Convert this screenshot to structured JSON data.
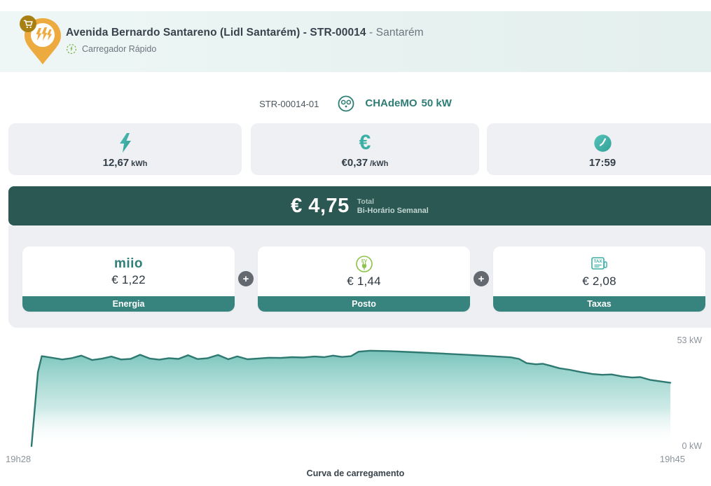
{
  "header": {
    "title_bold": "Avenida Bernardo Santareno (Lidl Santarém) - STR-00014",
    "title_light": " - Santarém",
    "subtitle": "Carregador Rápido"
  },
  "connector": {
    "code": "STR-00014-01",
    "type": "CHAdeMO",
    "power": "50 kW"
  },
  "stats": [
    {
      "icon": "lightning-icon",
      "value": "12,67",
      "unit": "kWh"
    },
    {
      "icon": "euro-icon",
      "value": "€0,37",
      "unit": "/kWh"
    },
    {
      "icon": "clock-icon",
      "value": "17:59",
      "unit": ""
    }
  ],
  "total": {
    "amount": "€ 4,75",
    "label_line1": "Total",
    "label_line2": "Bi-Horário Semanal"
  },
  "breakdown": [
    {
      "icon": "miio-logo",
      "logo_text": "miio",
      "price": "€ 1,22",
      "label": "Energia"
    },
    {
      "icon": "ev-charger-icon",
      "price": "€ 1,44",
      "label": "Posto"
    },
    {
      "icon": "tax-receipt-icon",
      "price": "€ 2,08",
      "label": "Taxas"
    }
  ],
  "plus_label": "+",
  "colors": {
    "accent_teal": "#3bafa6",
    "banner_teal": "#2b5852",
    "footer_teal": "#37847e",
    "chademo_teal": "#2e7d75",
    "pin_orange": "#ecaa3f",
    "badge_amber": "#a87f12",
    "green_icon": "#7ab648",
    "label_gray": "#8b949b"
  },
  "chart_data": {
    "type": "area",
    "title": "Curva de carregamento",
    "x_start_label": "19h28",
    "x_end_label": "19h45",
    "y_max_label": "53 kW",
    "y_min_label": "0 kW",
    "ylim": [
      0,
      53
    ],
    "unit": "kW",
    "grid": false,
    "legend": false,
    "line_color": "#2e7a72",
    "fill_top_color": "#57b5ab",
    "points": [
      [
        0.0,
        0
      ],
      [
        0.01,
        38
      ],
      [
        0.016,
        46.3
      ],
      [
        0.03,
        45.6
      ],
      [
        0.048,
        44.6
      ],
      [
        0.062,
        45.2
      ],
      [
        0.078,
        46.6
      ],
      [
        0.095,
        44.3
      ],
      [
        0.11,
        45.0
      ],
      [
        0.125,
        46.1
      ],
      [
        0.14,
        44.6
      ],
      [
        0.155,
        44.9
      ],
      [
        0.17,
        47.0
      ],
      [
        0.185,
        45.1
      ],
      [
        0.2,
        44.5
      ],
      [
        0.215,
        45.3
      ],
      [
        0.23,
        44.9
      ],
      [
        0.245,
        46.8
      ],
      [
        0.26,
        44.8
      ],
      [
        0.275,
        45.2
      ],
      [
        0.292,
        46.9
      ],
      [
        0.308,
        44.7
      ],
      [
        0.322,
        46.2
      ],
      [
        0.338,
        44.7
      ],
      [
        0.355,
        45.1
      ],
      [
        0.372,
        45.5
      ],
      [
        0.39,
        45.4
      ],
      [
        0.408,
        45.8
      ],
      [
        0.425,
        45.6
      ],
      [
        0.443,
        46.1
      ],
      [
        0.458,
        45.8
      ],
      [
        0.472,
        46.6
      ],
      [
        0.486,
        45.9
      ],
      [
        0.5,
        46.3
      ],
      [
        0.512,
        48.6
      ],
      [
        0.53,
        49.1
      ],
      [
        0.56,
        48.9
      ],
      [
        0.6,
        48.3
      ],
      [
        0.64,
        47.7
      ],
      [
        0.68,
        47.0
      ],
      [
        0.72,
        46.3
      ],
      [
        0.75,
        45.7
      ],
      [
        0.763,
        44.9
      ],
      [
        0.775,
        42.7
      ],
      [
        0.79,
        42.1
      ],
      [
        0.8,
        42.4
      ],
      [
        0.812,
        41.4
      ],
      [
        0.826,
        40.1
      ],
      [
        0.842,
        39.3
      ],
      [
        0.86,
        38.1
      ],
      [
        0.878,
        37.1
      ],
      [
        0.893,
        36.7
      ],
      [
        0.908,
        36.9
      ],
      [
        0.924,
        35.9
      ],
      [
        0.94,
        35.3
      ],
      [
        0.953,
        35.5
      ],
      [
        0.968,
        34.1
      ],
      [
        1.0,
        32.6
      ]
    ]
  }
}
